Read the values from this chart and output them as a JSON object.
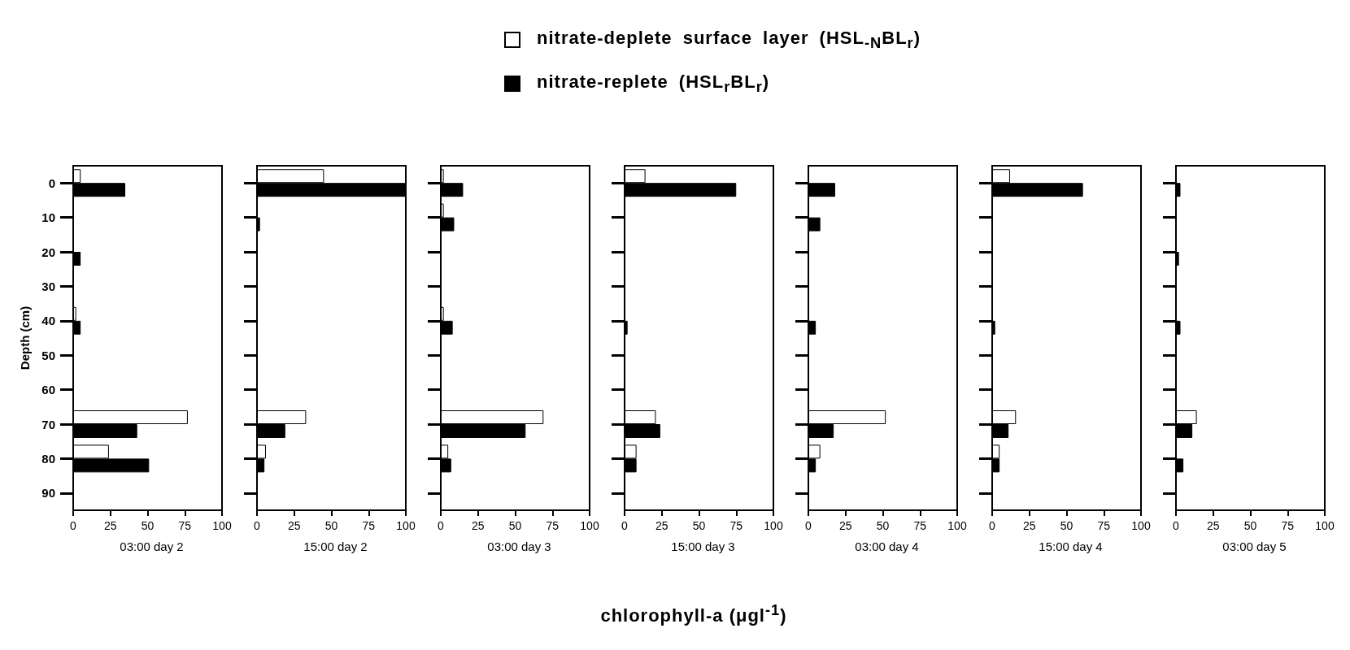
{
  "chart_data": [
    {
      "type": "bar",
      "orientation": "horizontal",
      "title": "03:00 day 2",
      "ylabel": "Depth (cm)",
      "legend": "top",
      "categories": [
        "0",
        "10",
        "20",
        "30",
        "40",
        "50",
        "60",
        "70",
        "80",
        "90"
      ],
      "xlim": [
        0,
        100
      ],
      "xticks": [
        0,
        25,
        50,
        75,
        100
      ],
      "series": [
        {
          "name": "nitrate-deplete surface layer (HSL$_{-N}$BL$_{r}$)",
          "color": "#ffffff",
          "values": [
            5,
            null,
            null,
            null,
            2,
            null,
            null,
            77,
            24,
            null
          ]
        },
        {
          "name": "nitrate-replete (HSL$_{r}$BL$_{r}$)",
          "color": "#000000",
          "values": [
            35,
            null,
            5,
            null,
            5,
            null,
            null,
            43,
            51,
            null
          ]
        }
      ]
    },
    {
      "type": "bar",
      "orientation": "horizontal",
      "title": "15:00 day 2",
      "tick_labels": "x",
      "categories": [
        "0",
        "10",
        "20",
        "30",
        "40",
        "50",
        "60",
        "70",
        "80",
        "90"
      ],
      "xlim": [
        0,
        100
      ],
      "xticks": [
        0,
        25,
        50,
        75,
        100
      ],
      "series": [
        {
          "color": "#ffffff",
          "values": [
            45,
            null,
            null,
            null,
            null,
            null,
            null,
            33,
            6,
            null
          ]
        },
        {
          "color": "#000000",
          "values": [
            100,
            2,
            null,
            null,
            null,
            null,
            null,
            19,
            5,
            null
          ]
        }
      ]
    },
    {
      "type": "bar",
      "orientation": "horizontal",
      "title": "03:00 day 3",
      "tick_labels": "x",
      "categories": [
        "0",
        "10",
        "20",
        "30",
        "40",
        "50",
        "60",
        "70",
        "80",
        "90"
      ],
      "xlim": [
        0,
        100
      ],
      "xticks": [
        0,
        25,
        50,
        75,
        100
      ],
      "series": [
        {
          "color": "#ffffff",
          "values": [
            2,
            2,
            null,
            null,
            2,
            null,
            null,
            69,
            5,
            null
          ]
        },
        {
          "color": "#000000",
          "values": [
            15,
            9,
            null,
            null,
            8,
            null,
            null,
            57,
            7,
            null
          ]
        }
      ]
    },
    {
      "type": "bar",
      "orientation": "horizontal",
      "title": "15:00 day 3",
      "xlabel": "chlorophyll-a (μgl$^{-1}$)",
      "tick_labels": "x",
      "categories": [
        "0",
        "10",
        "20",
        "30",
        "40",
        "50",
        "60",
        "70",
        "80",
        "90"
      ],
      "xlim": [
        0,
        100
      ],
      "xticks": [
        0,
        25,
        50,
        75,
        100
      ],
      "series": [
        {
          "color": "#ffffff",
          "values": [
            14,
            null,
            null,
            null,
            null,
            null,
            null,
            21,
            8,
            null
          ]
        },
        {
          "color": "#000000",
          "values": [
            75,
            null,
            null,
            null,
            2,
            null,
            null,
            24,
            8,
            null
          ]
        }
      ]
    },
    {
      "type": "bar",
      "orientation": "horizontal",
      "title": "03:00 day 4",
      "tick_labels": "x",
      "categories": [
        "0",
        "10",
        "20",
        "30",
        "40",
        "50",
        "60",
        "70",
        "80",
        "90"
      ],
      "xlim": [
        0,
        100
      ],
      "xticks": [
        0,
        25,
        50,
        75,
        100
      ],
      "series": [
        {
          "color": "#ffffff",
          "values": [
            null,
            null,
            null,
            null,
            null,
            null,
            null,
            52,
            8,
            null
          ]
        },
        {
          "color": "#000000",
          "values": [
            18,
            8,
            null,
            null,
            5,
            null,
            null,
            17,
            5,
            null
          ]
        }
      ]
    },
    {
      "type": "bar",
      "orientation": "horizontal",
      "title": "15:00 day 4",
      "tick_labels": "x",
      "categories": [
        "0",
        "10",
        "20",
        "30",
        "40",
        "50",
        "60",
        "70",
        "80",
        "90"
      ],
      "xlim": [
        0,
        100
      ],
      "xticks": [
        0,
        25,
        50,
        75,
        100
      ],
      "series": [
        {
          "color": "#ffffff",
          "values": [
            12,
            null,
            null,
            null,
            null,
            null,
            null,
            16,
            5,
            null
          ]
        },
        {
          "color": "#000000",
          "values": [
            61,
            null,
            null,
            null,
            2,
            null,
            null,
            11,
            5,
            null
          ]
        }
      ]
    },
    {
      "type": "bar",
      "orientation": "horizontal",
      "title": "03:00 day 5",
      "tick_labels": "x",
      "categories": [
        "0",
        "10",
        "20",
        "30",
        "40",
        "50",
        "60",
        "70",
        "80",
        "90"
      ],
      "xlim": [
        0,
        100
      ],
      "xticks": [
        0,
        25,
        50,
        75,
        100
      ],
      "series": [
        {
          "color": "#ffffff",
          "values": [
            null,
            null,
            null,
            null,
            null,
            null,
            null,
            14,
            null,
            null
          ]
        },
        {
          "color": "#000000",
          "values": [
            3,
            null,
            2,
            null,
            3,
            null,
            null,
            11,
            5,
            null
          ]
        }
      ]
    }
  ]
}
